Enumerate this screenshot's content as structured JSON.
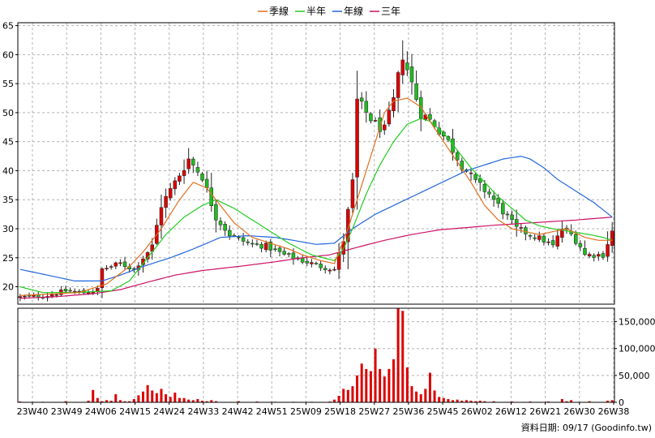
{
  "chart_data": {
    "type": "candlestick",
    "legend": {
      "placement": "top-center",
      "items": [
        {
          "label": "季線",
          "color": "#e07020"
        },
        {
          "label": "半年",
          "color": "#22cc22"
        },
        {
          "label": "年線",
          "color": "#2266dd"
        },
        {
          "label": "三年",
          "color": "#cc1166"
        }
      ]
    },
    "colors": {
      "up": "#dd0000",
      "down": "#22bb22",
      "volume": "#dd0000",
      "grid": "#b4b4b4"
    },
    "price_axis": {
      "position": "left",
      "min": 17,
      "max": 65.5,
      "ticks": [
        20,
        25,
        30,
        35,
        40,
        45,
        50,
        55,
        60,
        65
      ]
    },
    "volume_axis": {
      "position": "right",
      "min": 0,
      "max": 175000,
      "ticks": [
        0,
        50000,
        100000,
        150000
      ],
      "tick_labels": [
        "0",
        "50,000",
        "100,000",
        "150,000"
      ]
    },
    "x_axis": {
      "grid": true,
      "ticks": [
        "23W40",
        "23W49",
        "24W06",
        "24W15",
        "24W24",
        "24W33",
        "24W42",
        "24W51",
        "25W09",
        "25W18",
        "25W27",
        "25W36",
        "25W45",
        "26W02",
        "26W12",
        "26W21",
        "26W30",
        "26W38"
      ]
    },
    "footer": "資料日期: 09/17 (Goodinfo.tw)",
    "series_points": {
      "close": [
        [
          0,
          18.2
        ],
        [
          6,
          18.5
        ],
        [
          10,
          19.3
        ],
        [
          14,
          19.0
        ],
        [
          17,
          19.5
        ],
        [
          18,
          23.0
        ],
        [
          22,
          24.0
        ],
        [
          25,
          23.0
        ],
        [
          29,
          27.0
        ],
        [
          31,
          34.0
        ],
        [
          34,
          38.0
        ],
        [
          37,
          42.0
        ],
        [
          40,
          39.0
        ],
        [
          43,
          32.0
        ],
        [
          46,
          29.0
        ],
        [
          50,
          27.5
        ],
        [
          54,
          27.0
        ],
        [
          58,
          25.5
        ],
        [
          62,
          24.5
        ],
        [
          66,
          23.5
        ],
        [
          69,
          23.0
        ],
        [
          71,
          28.0
        ],
        [
          73,
          38.0
        ],
        [
          74,
          52.0
        ],
        [
          76,
          50.0
        ],
        [
          78,
          48.0
        ],
        [
          80,
          47.0
        ],
        [
          82,
          52.0
        ],
        [
          84,
          60.0
        ],
        [
          86,
          55.0
        ],
        [
          88,
          50.0
        ],
        [
          91,
          48.0
        ],
        [
          94,
          45.0
        ],
        [
          97,
          41.0
        ],
        [
          100,
          38.0
        ],
        [
          103,
          36.0
        ],
        [
          106,
          33.0
        ],
        [
          109,
          30.0
        ],
        [
          112,
          29.0
        ],
        [
          115,
          28.0
        ],
        [
          117,
          27.0
        ],
        [
          119,
          30.0
        ],
        [
          121,
          29.0
        ],
        [
          123,
          27.0
        ],
        [
          124,
          25.5
        ],
        [
          128,
          25.5
        ],
        [
          130,
          29.5
        ]
      ],
      "q_line": [
        [
          0,
          18.5
        ],
        [
          13,
          19.0
        ],
        [
          19,
          20.5
        ],
        [
          24,
          23.5
        ],
        [
          27,
          26.0
        ],
        [
          31,
          30.0
        ],
        [
          35,
          35.0
        ],
        [
          38,
          38.0
        ],
        [
          41,
          37.0
        ],
        [
          44,
          34.0
        ],
        [
          47,
          31.0
        ],
        [
          51,
          28.5
        ],
        [
          55,
          27.5
        ],
        [
          59,
          26.5
        ],
        [
          62,
          25.5
        ],
        [
          66,
          24.5
        ],
        [
          69,
          24.0
        ],
        [
          70,
          26.0
        ],
        [
          72,
          30.0
        ],
        [
          74,
          35.0
        ],
        [
          76,
          40.0
        ],
        [
          78,
          45.0
        ],
        [
          80,
          50.0
        ],
        [
          82,
          52.0
        ],
        [
          85,
          52.5
        ],
        [
          88,
          51.0
        ],
        [
          90,
          48.5
        ],
        [
          93,
          45.0
        ],
        [
          96,
          41.5
        ],
        [
          99,
          38.0
        ],
        [
          102,
          34.0
        ],
        [
          105,
          31.5
        ],
        [
          108,
          30.0
        ],
        [
          111,
          29.5
        ],
        [
          114,
          29.0
        ],
        [
          117,
          29.5
        ],
        [
          120,
          30.0
        ],
        [
          124,
          28.5
        ],
        [
          127,
          28.0
        ],
        [
          130,
          28.0
        ]
      ],
      "h_line": [
        [
          0,
          20.0
        ],
        [
          5,
          19.0
        ],
        [
          12,
          19.0
        ],
        [
          20,
          19.3
        ],
        [
          24,
          21.0
        ],
        [
          28,
          25.0
        ],
        [
          32,
          29.0
        ],
        [
          36,
          32.0
        ],
        [
          40,
          34.0
        ],
        [
          43,
          35.0
        ],
        [
          47,
          33.5
        ],
        [
          51,
          31.5
        ],
        [
          55,
          29.5
        ],
        [
          59,
          27.5
        ],
        [
          64,
          25.5
        ],
        [
          69,
          24.5
        ],
        [
          71,
          26.5
        ],
        [
          73,
          30.0
        ],
        [
          76,
          36.0
        ],
        [
          79,
          41.0
        ],
        [
          82,
          45.0
        ],
        [
          85,
          48.0
        ],
        [
          88,
          49.0
        ],
        [
          90,
          48.5
        ],
        [
          93,
          46.5
        ],
        [
          96,
          43.5
        ],
        [
          99,
          40.5
        ],
        [
          102,
          38.0
        ],
        [
          105,
          35.5
        ],
        [
          108,
          33.5
        ],
        [
          111,
          31.5
        ],
        [
          114,
          30.5
        ],
        [
          117,
          30.0
        ],
        [
          121,
          29.5
        ],
        [
          125,
          29.0
        ],
        [
          128,
          28.5
        ],
        [
          130,
          28.0
        ]
      ],
      "y_line": [
        [
          0,
          23.0
        ],
        [
          6,
          22.0
        ],
        [
          12,
          21.0
        ],
        [
          18,
          21.0
        ],
        [
          22,
          22.0
        ],
        [
          27,
          23.5
        ],
        [
          33,
          25.0
        ],
        [
          38,
          26.5
        ],
        [
          44,
          28.5
        ],
        [
          50,
          28.8
        ],
        [
          56,
          28.5
        ],
        [
          60,
          28.0
        ],
        [
          65,
          27.3
        ],
        [
          69,
          27.5
        ],
        [
          73,
          30.0
        ],
        [
          78,
          32.5
        ],
        [
          82,
          34.0
        ],
        [
          86,
          35.5
        ],
        [
          90,
          37.0
        ],
        [
          94,
          38.5
        ],
        [
          98,
          40.0
        ],
        [
          102,
          41.0
        ],
        [
          106,
          42.0
        ],
        [
          110,
          42.5
        ],
        [
          112,
          42.0
        ],
        [
          115,
          40.5
        ],
        [
          118,
          38.5
        ],
        [
          122,
          36.5
        ],
        [
          126,
          34.5
        ],
        [
          130,
          32.0
        ]
      ],
      "t_line": [
        [
          0,
          18.0
        ],
        [
          8,
          18.3
        ],
        [
          16,
          18.8
        ],
        [
          22,
          19.5
        ],
        [
          28,
          20.8
        ],
        [
          34,
          22.0
        ],
        [
          40,
          22.8
        ],
        [
          48,
          23.5
        ],
        [
          56,
          24.3
        ],
        [
          62,
          25.0
        ],
        [
          68,
          25.5
        ],
        [
          74,
          26.8
        ],
        [
          80,
          28.0
        ],
        [
          86,
          29.0
        ],
        [
          92,
          29.8
        ],
        [
          98,
          30.2
        ],
        [
          104,
          30.6
        ],
        [
          110,
          30.9
        ],
        [
          116,
          31.2
        ],
        [
          122,
          31.5
        ],
        [
          130,
          32.0
        ]
      ],
      "volume": [
        [
          0,
          1500
        ],
        [
          5,
          1000
        ],
        [
          10,
          2000
        ],
        [
          15,
          3000
        ],
        [
          16,
          23000
        ],
        [
          17,
          8000
        ],
        [
          18,
          2000
        ],
        [
          19,
          4000
        ],
        [
          20,
          3000
        ],
        [
          21,
          15000
        ],
        [
          22,
          4000
        ],
        [
          23,
          2000
        ],
        [
          24,
          2000
        ],
        [
          25,
          6000
        ],
        [
          26,
          13000
        ],
        [
          27,
          20000
        ],
        [
          28,
          32000
        ],
        [
          29,
          22000
        ],
        [
          30,
          17000
        ],
        [
          31,
          25000
        ],
        [
          32,
          15000
        ],
        [
          33,
          10000
        ],
        [
          34,
          18000
        ],
        [
          35,
          8000
        ],
        [
          36,
          8000
        ],
        [
          37,
          5000
        ],
        [
          38,
          4000
        ],
        [
          39,
          6000
        ],
        [
          40,
          3000
        ],
        [
          41,
          2000
        ],
        [
          42,
          4000
        ],
        [
          43,
          2000
        ],
        [
          48,
          2000
        ],
        [
          52,
          1500
        ],
        [
          56,
          1000
        ],
        [
          60,
          1000
        ],
        [
          64,
          1000
        ],
        [
          68,
          1500
        ],
        [
          69,
          5000
        ],
        [
          70,
          12000
        ],
        [
          71,
          25000
        ],
        [
          72,
          23000
        ],
        [
          73,
          30000
        ],
        [
          74,
          50000
        ],
        [
          75,
          72000
        ],
        [
          76,
          62000
        ],
        [
          77,
          58000
        ],
        [
          78,
          100000
        ],
        [
          79,
          62000
        ],
        [
          80,
          48000
        ],
        [
          81,
          62000
        ],
        [
          82,
          80000
        ],
        [
          83,
          175000
        ],
        [
          84,
          170000
        ],
        [
          85,
          65000
        ],
        [
          86,
          30000
        ],
        [
          87,
          20000
        ],
        [
          88,
          15000
        ],
        [
          89,
          25000
        ],
        [
          90,
          55000
        ],
        [
          91,
          22000
        ],
        [
          92,
          10000
        ],
        [
          93,
          8000
        ],
        [
          94,
          6000
        ],
        [
          95,
          4000
        ],
        [
          96,
          5000
        ],
        [
          97,
          3000
        ],
        [
          98,
          4000
        ],
        [
          99,
          3000
        ],
        [
          100,
          2000
        ],
        [
          101,
          3000
        ],
        [
          102,
          2000
        ],
        [
          104,
          2000
        ],
        [
          108,
          1500
        ],
        [
          112,
          1500
        ],
        [
          116,
          1500
        ],
        [
          119,
          6000
        ],
        [
          120,
          2000
        ],
        [
          121,
          4000
        ],
        [
          125,
          2000
        ],
        [
          129,
          3000
        ],
        [
          130,
          4000
        ]
      ]
    }
  }
}
